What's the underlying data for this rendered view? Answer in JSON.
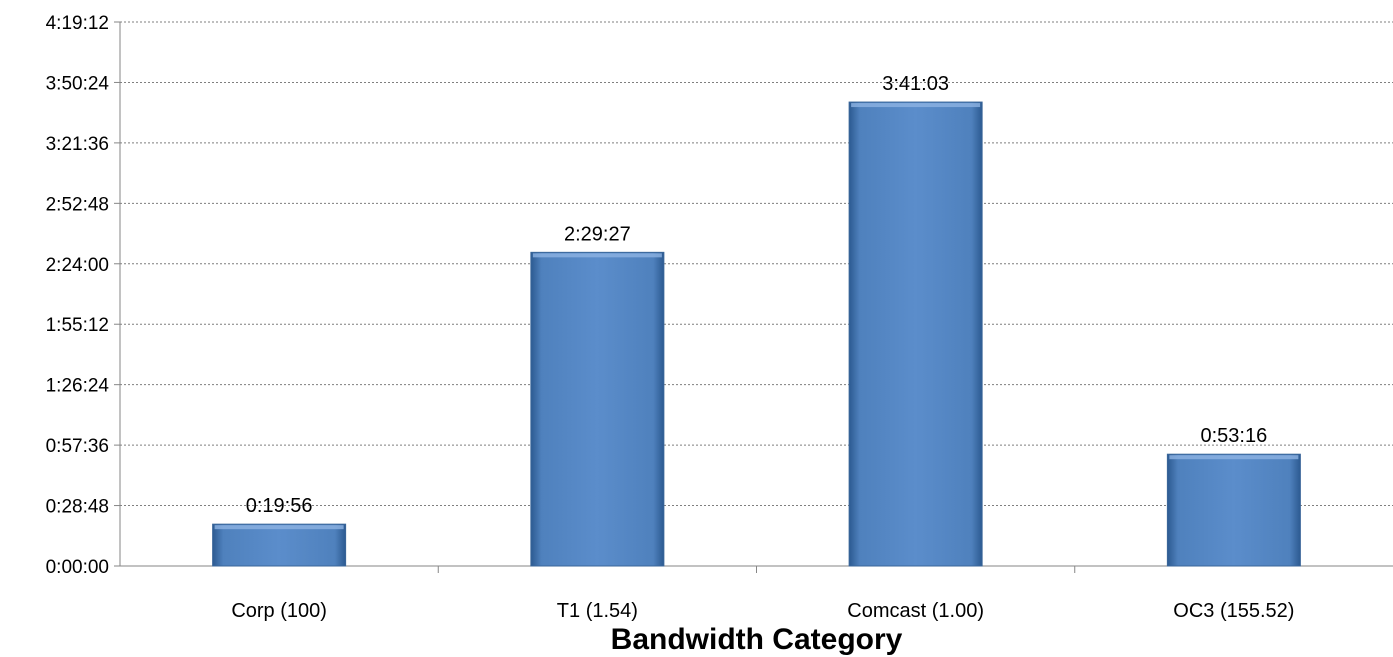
{
  "chart_data": {
    "type": "bar",
    "title": "",
    "xlabel": "Bandwidth Category",
    "ylabel": "",
    "categories": [
      "Corp (100)",
      "T1 (1.54)",
      "Comcast (1.00)",
      "OC3 (155.52)"
    ],
    "series": [
      {
        "values": [
          "0:19:56",
          "2:29:27",
          "3:41:03",
          "0:53:16"
        ],
        "values_seconds": [
          1196,
          8967,
          13263,
          3196
        ]
      }
    ],
    "data_labels": [
      "0:19:56",
      "2:29:27",
      "3:41:03",
      "0:53:16"
    ],
    "y_ticks": [
      "0:00:00",
      "0:28:48",
      "0:57:36",
      "1:26:24",
      "1:55:12",
      "2:24:00",
      "2:52:48",
      "3:21:36",
      "3:50:24",
      "4:19:12"
    ],
    "y_ticks_seconds": [
      0,
      1728,
      3456,
      5184,
      6912,
      8640,
      10368,
      12096,
      13824,
      15552
    ],
    "ylim": [
      "0:00:00",
      "4:19:12"
    ],
    "ylim_seconds": [
      0,
      15552
    ],
    "grid": true,
    "legend": "none",
    "bar_color": "#4F81BD"
  }
}
